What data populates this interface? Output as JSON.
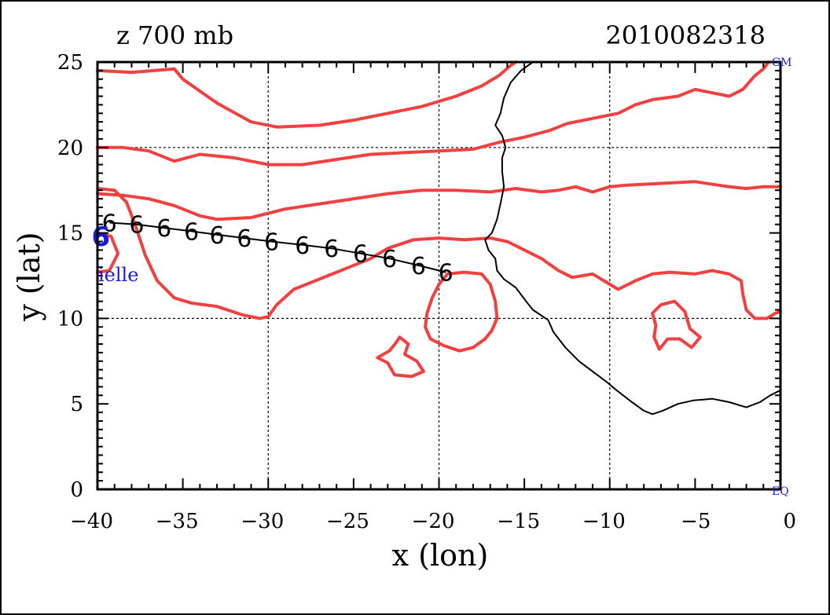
{
  "chart_data": {
    "type": "line",
    "title_left": "z 700 mb",
    "title_right": "2010082318",
    "xlabel": "x (lon)",
    "ylabel": "y (lat)",
    "xlim": [
      -40,
      0
    ],
    "ylim": [
      0,
      25
    ],
    "x_ticks": [
      -40,
      -35,
      -30,
      -25,
      -20,
      -15,
      -10,
      -5,
      0
    ],
    "y_ticks": [
      0,
      5,
      10,
      15,
      20,
      25
    ],
    "x_tick_labels": [
      "−40",
      "−35",
      "−30",
      "−25",
      "−20",
      "−15",
      "−10",
      "−5",
      "0"
    ],
    "y_tick_labels": [
      "0",
      "5",
      "10",
      "15",
      "20",
      "25"
    ],
    "grid": true,
    "grid_lines_x": [
      -30,
      -20,
      -10
    ],
    "grid_lines_y": [
      10,
      20
    ],
    "corner_labels": {
      "top_right": "GM",
      "bottom_right": "EQ"
    },
    "storm_label": "ielle",
    "colors": {
      "contour": "#f04040",
      "coast": "#000000",
      "track": "#000000",
      "storm": "#1a1adc",
      "grid": "#000000"
    },
    "track": {
      "symbol": "6",
      "current_symbol": "6",
      "current_point": [
        -39.8,
        14.8
      ],
      "points": [
        [
          -39.3,
          15.6
        ],
        [
          -37.7,
          15.5
        ],
        [
          -36.1,
          15.3
        ],
        [
          -34.5,
          15.1
        ],
        [
          -33.0,
          14.9
        ],
        [
          -31.4,
          14.7
        ],
        [
          -29.8,
          14.5
        ],
        [
          -28.0,
          14.3
        ],
        [
          -26.3,
          14.1
        ],
        [
          -24.6,
          13.8
        ],
        [
          -22.9,
          13.5
        ],
        [
          -21.2,
          13.1
        ],
        [
          -19.6,
          12.7
        ]
      ]
    },
    "series": [
      {
        "type": "contour",
        "lines": [
          [
            [
              -40,
              24.5
            ],
            [
              -38,
              24.4
            ],
            [
              -35.5,
              24.6
            ],
            [
              -35,
              24.0
            ],
            [
              -34,
              23.3
            ],
            [
              -33,
              22.6
            ],
            [
              -31,
              21.5
            ],
            [
              -29.5,
              21.2
            ],
            [
              -27,
              21.3
            ],
            [
              -25,
              21.6
            ],
            [
              -23,
              22.0
            ],
            [
              -21,
              22.4
            ],
            [
              -19,
              23.0
            ],
            [
              -17.5,
              23.6
            ],
            [
              -16.5,
              24.2
            ],
            [
              -15.8,
              24.8
            ],
            [
              -15.5,
              25
            ]
          ],
          [
            [
              -40,
              20.0
            ],
            [
              -38.5,
              20.0
            ],
            [
              -37,
              19.8
            ],
            [
              -35.5,
              19.2
            ],
            [
              -34,
              19.6
            ],
            [
              -32,
              19.4
            ],
            [
              -30,
              19.0
            ],
            [
              -28,
              19.0
            ],
            [
              -26,
              19.3
            ],
            [
              -24,
              19.6
            ],
            [
              -22,
              19.7
            ],
            [
              -20,
              19.8
            ],
            [
              -18,
              19.9
            ],
            [
              -16.5,
              20.3
            ],
            [
              -15,
              20.6
            ],
            [
              -13.5,
              21.0
            ],
            [
              -12.5,
              21.4
            ],
            [
              -11,
              21.7
            ],
            [
              -9.5,
              22.0
            ],
            [
              -8.5,
              22.5
            ],
            [
              -7.5,
              22.8
            ],
            [
              -6,
              23.0
            ],
            [
              -5,
              23.4
            ],
            [
              -4,
              23.2
            ],
            [
              -3,
              23.0
            ],
            [
              -2.2,
              23.4
            ],
            [
              -1.5,
              24.2
            ],
            [
              -1,
              24.6
            ],
            [
              -0.7,
              25
            ]
          ],
          [
            [
              -40,
              17.3
            ],
            [
              -38.5,
              17.2
            ],
            [
              -37,
              17.0
            ],
            [
              -35.5,
              16.6
            ],
            [
              -34,
              16.0
            ],
            [
              -33,
              15.8
            ],
            [
              -31,
              15.9
            ],
            [
              -29,
              16.4
            ],
            [
              -27,
              16.7
            ],
            [
              -25,
              17.0
            ],
            [
              -23,
              17.3
            ],
            [
              -21,
              17.5
            ],
            [
              -19,
              17.5
            ],
            [
              -17,
              17.4
            ],
            [
              -15.5,
              17.6
            ],
            [
              -14,
              17.4
            ],
            [
              -13,
              17.5
            ],
            [
              -12,
              17.7
            ],
            [
              -11,
              17.4
            ],
            [
              -10,
              17.7
            ],
            [
              -9,
              17.8
            ],
            [
              -7,
              17.9
            ],
            [
              -5,
              18.0
            ],
            [
              -3,
              17.7
            ],
            [
              -2,
              17.6
            ],
            [
              -1,
              17.7
            ],
            [
              0,
              17.7
            ]
          ],
          [
            [
              -40,
              17.6
            ],
            [
              -39,
              17.5
            ],
            [
              -38.3,
              16.8
            ],
            [
              -37.8,
              15.5
            ],
            [
              -37.2,
              13.7
            ],
            [
              -36.5,
              12.2
            ],
            [
              -35.5,
              11.2
            ],
            [
              -34.5,
              10.9
            ],
            [
              -33,
              10.7
            ],
            [
              -31.5,
              10.2
            ],
            [
              -30.5,
              10.0
            ],
            [
              -30,
              10.1
            ],
            [
              -29.5,
              10.8
            ],
            [
              -28.5,
              11.7
            ],
            [
              -27,
              12.3
            ],
            [
              -25.5,
              12.9
            ],
            [
              -24,
              13.5
            ],
            [
              -23,
              14.1
            ],
            [
              -21.5,
              14.6
            ],
            [
              -20,
              14.7
            ],
            [
              -18.5,
              14.6
            ],
            [
              -17,
              14.7
            ],
            [
              -16,
              14.5
            ],
            [
              -15,
              14.0
            ],
            [
              -14,
              13.5
            ],
            [
              -13,
              12.8
            ],
            [
              -12.2,
              12.4
            ],
            [
              -11,
              12.6
            ],
            [
              -10,
              12.0
            ],
            [
              -9.5,
              11.7
            ],
            [
              -8.5,
              12.2
            ],
            [
              -7.5,
              12.6
            ],
            [
              -6.5,
              12.7
            ],
            [
              -5,
              12.6
            ],
            [
              -4,
              12.8
            ],
            [
              -3,
              12.6
            ],
            [
              -2.3,
              12.2
            ],
            [
              -2.2,
              11.4
            ],
            [
              -2.0,
              10.5
            ],
            [
              -1.5,
              10.0
            ],
            [
              -0.8,
              10.0
            ],
            [
              -0.3,
              10.3
            ],
            [
              0,
              10.4
            ]
          ],
          [
            [
              -40,
              15.0
            ],
            [
              -39.2,
              14.8
            ],
            [
              -38.8,
              13.8
            ],
            [
              -39.3,
              12.8
            ],
            [
              -40,
              12.7
            ]
          ],
          [
            [
              -19.5,
              12.6
            ],
            [
              -18.5,
              12.7
            ],
            [
              -17.5,
              12.6
            ],
            [
              -17,
              12.0
            ],
            [
              -16.7,
              11.0
            ],
            [
              -16.6,
              10.0
            ],
            [
              -16.9,
              9.3
            ],
            [
              -17.3,
              8.8
            ],
            [
              -18,
              8.3
            ],
            [
              -18.8,
              8.1
            ],
            [
              -19.7,
              8.4
            ],
            [
              -20.5,
              8.8
            ],
            [
              -20.8,
              9.5
            ],
            [
              -20.7,
              10.3
            ],
            [
              -20.4,
              11.2
            ],
            [
              -20.0,
              12.0
            ],
            [
              -19.5,
              12.6
            ]
          ],
          [
            [
              -22.3,
              8.9
            ],
            [
              -21.8,
              8.5
            ],
            [
              -22.0,
              7.9
            ],
            [
              -21.3,
              7.5
            ],
            [
              -20.9,
              6.9
            ],
            [
              -21.6,
              6.6
            ],
            [
              -22.6,
              6.7
            ],
            [
              -23.0,
              7.4
            ],
            [
              -23.6,
              7.7
            ],
            [
              -22.9,
              8.1
            ],
            [
              -22.5,
              8.6
            ],
            [
              -22.3,
              8.9
            ]
          ],
          [
            [
              -7.5,
              10.3
            ],
            [
              -7.0,
              10.8
            ],
            [
              -6.2,
              11.0
            ],
            [
              -5.6,
              10.4
            ],
            [
              -5.3,
              9.4
            ],
            [
              -4.7,
              8.9
            ],
            [
              -5.2,
              8.3
            ],
            [
              -5.9,
              8.8
            ],
            [
              -6.6,
              8.8
            ],
            [
              -7.1,
              8.2
            ],
            [
              -7.4,
              8.9
            ],
            [
              -7.3,
              9.6
            ],
            [
              -7.5,
              10.3
            ]
          ]
        ]
      },
      {
        "type": "coastline",
        "lines": [
          [
            [
              -14.5,
              25
            ],
            [
              -15.2,
              24.5
            ],
            [
              -15.8,
              23.8
            ],
            [
              -16.2,
              22.9
            ],
            [
              -16.4,
              22.0
            ],
            [
              -16.7,
              21.3
            ],
            [
              -16.3,
              20.7
            ],
            [
              -16.1,
              20.0
            ],
            [
              -16.3,
              19.4
            ],
            [
              -16.3,
              18.6
            ],
            [
              -16.2,
              17.7
            ],
            [
              -16.4,
              16.7
            ],
            [
              -16.6,
              15.8
            ],
            [
              -16.9,
              15.0
            ],
            [
              -17.3,
              14.6
            ],
            [
              -17.1,
              14.0
            ],
            [
              -16.7,
              13.5
            ],
            [
              -16.6,
              12.8
            ],
            [
              -16.2,
              12.3
            ],
            [
              -15.5,
              11.8
            ],
            [
              -14.9,
              11.0
            ],
            [
              -14.5,
              10.5
            ],
            [
              -13.6,
              9.9
            ],
            [
              -13.3,
              9.2
            ],
            [
              -12.6,
              8.3
            ],
            [
              -11.8,
              7.5
            ],
            [
              -11.0,
              6.9
            ],
            [
              -10.2,
              6.3
            ],
            [
              -9.6,
              5.8
            ],
            [
              -8.7,
              5.1
            ],
            [
              -8.0,
              4.6
            ],
            [
              -7.5,
              4.4
            ],
            [
              -6.9,
              4.6
            ],
            [
              -6.0,
              5.0
            ],
            [
              -5.1,
              5.2
            ],
            [
              -4.0,
              5.3
            ],
            [
              -3.0,
              5.1
            ],
            [
              -2.0,
              4.8
            ],
            [
              -1.2,
              5.1
            ],
            [
              -0.6,
              5.5
            ],
            [
              0,
              5.8
            ]
          ]
        ]
      }
    ]
  }
}
